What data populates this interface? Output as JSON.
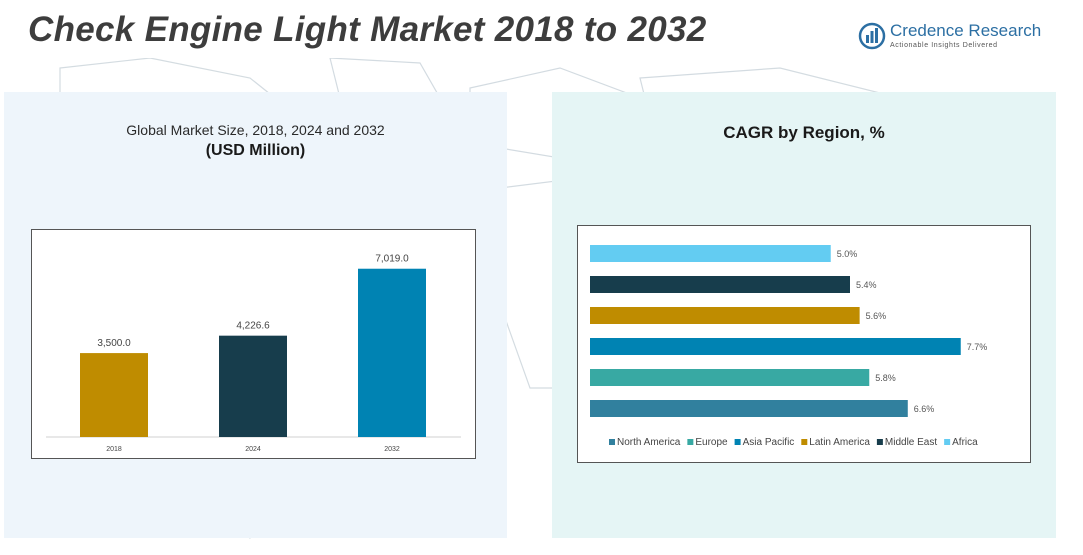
{
  "header": {
    "title": "Check Engine Light Market 2018 to 2032",
    "brand_name": "Credence Research",
    "brand_tagline": "Actionable Insights Delivered"
  },
  "left_panel": {
    "subtitle": "Global Market Size, 2018, 2024 and 2032",
    "unit": "(USD Million)"
  },
  "right_panel": {
    "title": "CAGR by Region, %"
  },
  "chart_data": [
    {
      "type": "bar",
      "title": "Global Market Size, 2018, 2024 and 2032",
      "ylabel": "(USD Million)",
      "categories": [
        "2018",
        "2024",
        "2032"
      ],
      "values": [
        3500.0,
        4226.6,
        7019.0
      ],
      "data_labels": [
        "3,500.0",
        "4,226.6",
        "7,019.0"
      ],
      "colors": [
        "#bf8c00",
        "#173d4c",
        "#0083b3"
      ],
      "ylim": [
        0,
        7800
      ],
      "grid": false
    },
    {
      "type": "bar",
      "orientation": "horizontal",
      "title": "CAGR by Region, %",
      "categories": [
        "Africa",
        "Middle East",
        "Latin America",
        "Asia Pacific",
        "Europe",
        "North America"
      ],
      "values": [
        5.0,
        5.4,
        5.6,
        7.7,
        5.8,
        6.6
      ],
      "data_labels": [
        "5.0%",
        "5.4%",
        "5.6%",
        "7.7%",
        "5.8%",
        "6.6%"
      ],
      "colors": [
        "#63ccf2",
        "#173d4c",
        "#bf8c00",
        "#0083b3",
        "#38a9a3",
        "#31809e"
      ],
      "xlim": [
        0,
        8.1
      ],
      "legend_position": "bottom",
      "legend_order": [
        "North America",
        "Europe",
        "Asia Pacific",
        "Latin America",
        "Middle East",
        "Africa"
      ],
      "grid": false
    }
  ]
}
